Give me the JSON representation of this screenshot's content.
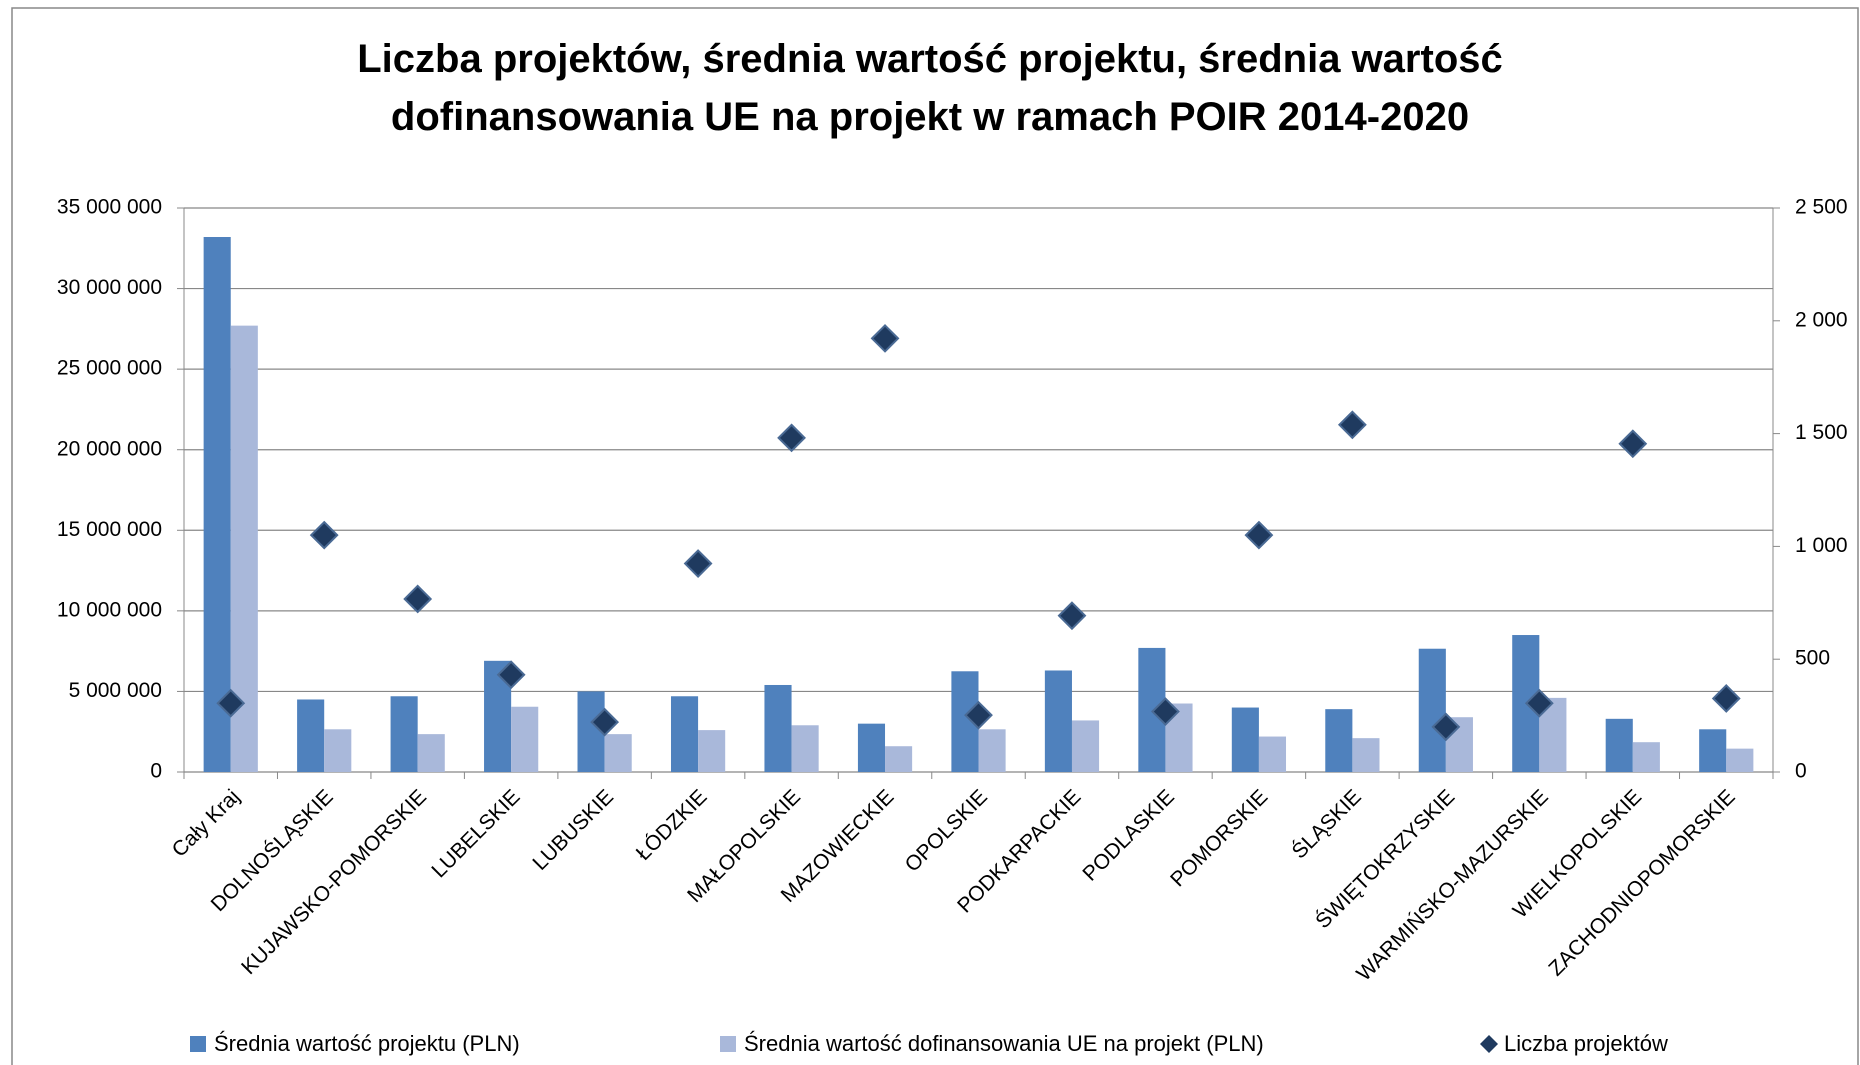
{
  "chart_data": {
    "type": "bar",
    "title": "Liczba projektów, średnia wartość projektu, średnia wartość dofinansowania UE na projekt w ramach POIR 2014-2020",
    "categories": [
      "Cały Kraj",
      "DOLNOŚLĄSKIE",
      "KUJAWSKO-POMORSKIE",
      "LUBELSKIE",
      "LUBUSKIE",
      "ŁÓDZKIE",
      "MAŁOPOLSKIE",
      "MAZOWIECKIE",
      "OPOLSKIE",
      "PODKARPACKIE",
      "PODLASKIE",
      "POMORSKIE",
      "ŚLĄSKIE",
      "ŚWIĘTOKRZYSKIE",
      "WARMIŃSKO-MAZURSKIE",
      "WIELKOPOLSKIE",
      "ZACHODNIOPOMORSKIE"
    ],
    "series": [
      {
        "name": "Średnia wartość projektu (PLN)",
        "color": "#4f81bd",
        "type": "bar",
        "values": [
          33200000,
          4500000,
          4700000,
          6900000,
          5000000,
          4700000,
          5400000,
          3000000,
          6250000,
          6300000,
          7700000,
          4000000,
          3900000,
          7650000,
          8500000,
          3300000,
          2650000
        ]
      },
      {
        "name": "Średnia wartość dofinansowania UE na projekt (PLN)",
        "color": "#a9b8da",
        "type": "bar",
        "values": [
          27700000,
          2650000,
          2350000,
          4050000,
          2350000,
          2600000,
          2900000,
          1600000,
          2650000,
          3200000,
          4250000,
          2200000,
          2100000,
          3400000,
          4600000,
          1850000,
          1450000
        ]
      },
      {
        "name": "Liczba projektów",
        "color": "#1f3a5f",
        "type": "scatter",
        "axis": "y2",
        "values": [
          305,
          1050,
          767,
          431,
          221,
          924,
          1481,
          1922,
          252,
          693,
          268,
          1050,
          1539,
          200,
          305,
          1455,
          326
        ]
      }
    ],
    "ylim": [
      0,
      35000000
    ],
    "yticks": [
      0,
      {
        "value": 5000000,
        "label": "5 000 000"
      },
      {
        "value": 10000000,
        "label": "10 000 000"
      },
      {
        "value": 15000000,
        "label": "15 000 000"
      },
      {
        "value": 20000000,
        "label": "20 000 000"
      },
      {
        "value": 25000000,
        "label": "25 000 000"
      },
      {
        "value": 30000000,
        "label": "30 000 000"
      },
      {
        "value": 35000000,
        "label": "35 000 000"
      }
    ],
    "y2lim": [
      0,
      2500
    ],
    "y2ticks": [
      0,
      500,
      {
        "value": 1000,
        "label": "1 000"
      },
      {
        "value": 1500,
        "label": "1 500"
      },
      {
        "value": 2000,
        "label": "2 000"
      },
      {
        "value": 2500,
        "label": "2 500"
      }
    ],
    "grid": true,
    "legend": "bottom"
  }
}
